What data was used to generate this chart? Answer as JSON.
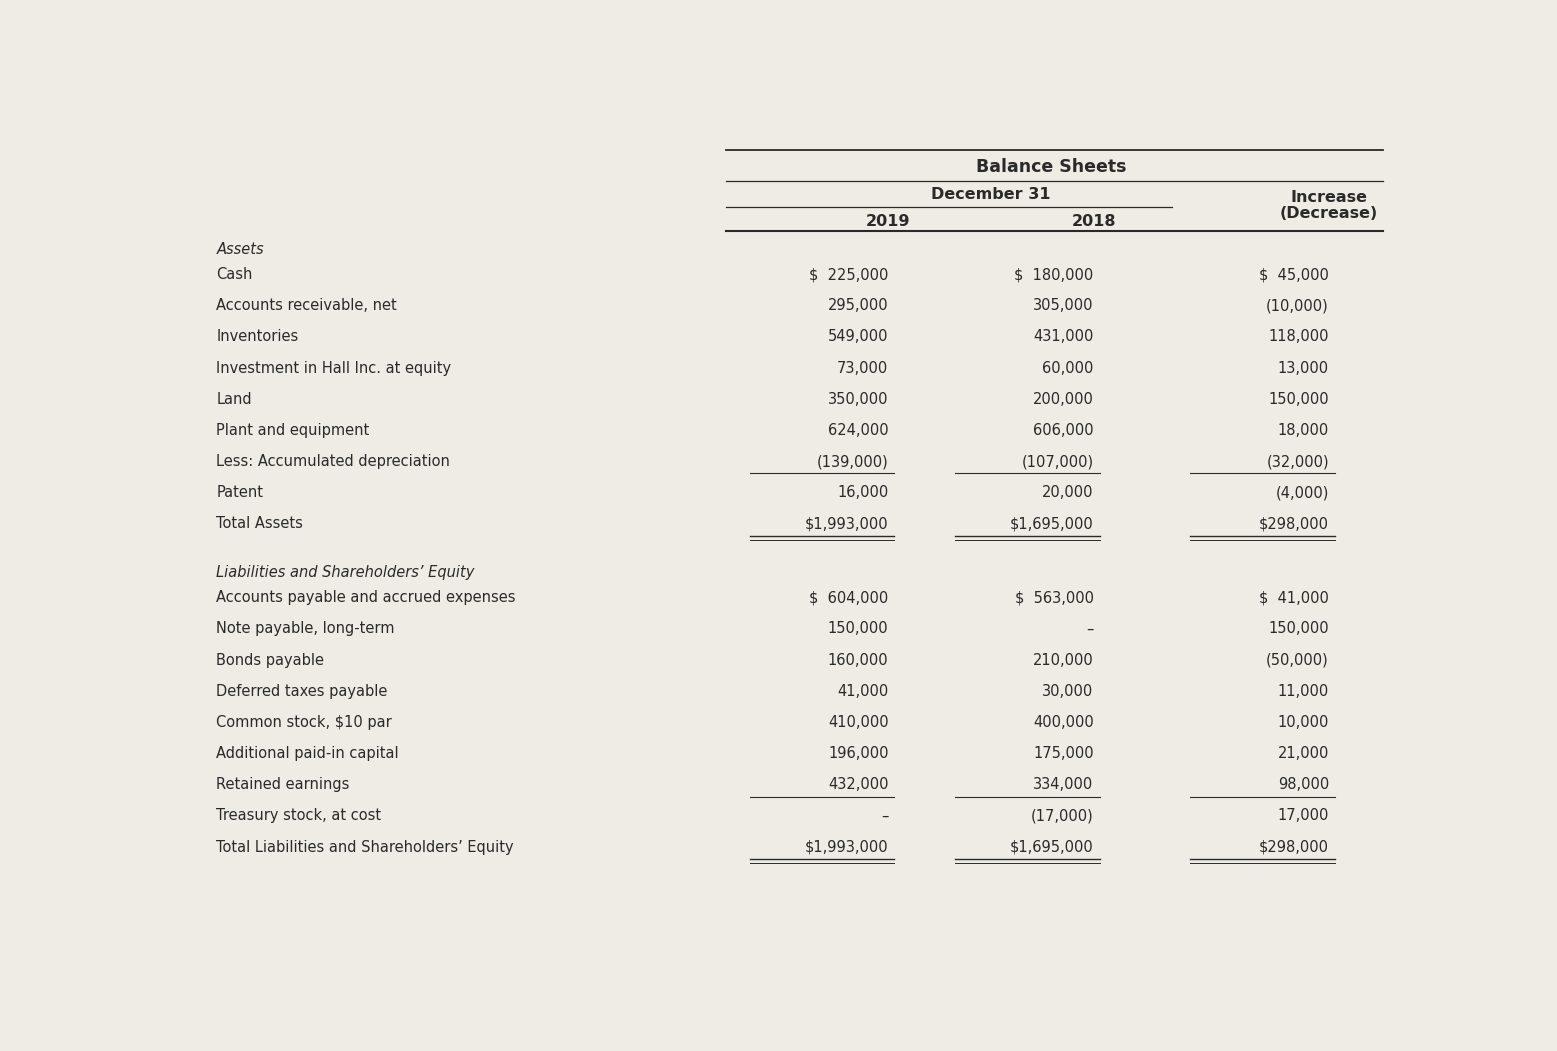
{
  "title": "Balance Sheets",
  "subtitle_dec31": "December 31",
  "background_color": "#eeece4",
  "text_color": "#2a2a2a",
  "assets_header": "Assets",
  "assets_rows": [
    {
      "label": "Cash",
      "v2019": "$  225,000",
      "v2018": "$  180,000",
      "vinc": "$  45,000"
    },
    {
      "label": "Accounts receivable, net",
      "v2019": "295,000",
      "v2018": "305,000",
      "vinc": "(10,000)"
    },
    {
      "label": "Inventories",
      "v2019": "549,000",
      "v2018": "431,000",
      "vinc": "118,000"
    },
    {
      "label": "Investment in Hall Inc. at equity",
      "v2019": "73,000",
      "v2018": "60,000",
      "vinc": "13,000"
    },
    {
      "label": "Land",
      "v2019": "350,000",
      "v2018": "200,000",
      "vinc": "150,000"
    },
    {
      "label": "Plant and equipment",
      "v2019": "624,000",
      "v2018": "606,000",
      "vinc": "18,000"
    },
    {
      "label": "Less: Accumulated depreciation",
      "v2019": "(139,000)",
      "v2018": "(107,000)",
      "vinc": "(32,000)"
    },
    {
      "label": "Patent",
      "v2019": "16,000",
      "v2018": "20,000",
      "vinc": "(4,000)",
      "underline": true
    },
    {
      "label": "Total Assets",
      "v2019": "$1,993,000",
      "v2018": "$1,695,000",
      "vinc": "$298,000",
      "total": true
    }
  ],
  "liabilities_header": "Liabilities and Shareholders’ Equity",
  "liabilities_rows": [
    {
      "label": "Accounts payable and accrued expenses",
      "v2019": "$  604,000",
      "v2018": "$  563,000",
      "vinc": "$  41,000"
    },
    {
      "label": "Note payable, long-term",
      "v2019": "150,000",
      "v2018": "–",
      "vinc": "150,000"
    },
    {
      "label": "Bonds payable",
      "v2019": "160,000",
      "v2018": "210,000",
      "vinc": "(50,000)"
    },
    {
      "label": "Deferred taxes payable",
      "v2019": "41,000",
      "v2018": "30,000",
      "vinc": "11,000"
    },
    {
      "label": "Common stock, $10 par",
      "v2019": "410,000",
      "v2018": "400,000",
      "vinc": "10,000"
    },
    {
      "label": "Additional paid-in capital",
      "v2019": "196,000",
      "v2018": "175,000",
      "vinc": "21,000"
    },
    {
      "label": "Retained earnings",
      "v2019": "432,000",
      "v2018": "334,000",
      "vinc": "98,000"
    },
    {
      "label": "Treasury stock, at cost",
      "v2019": "–",
      "v2018": "(17,000)",
      "vinc": "17,000",
      "underline": true
    },
    {
      "label": "Total Liabilities and Shareholders’ Equity",
      "v2019": "$1,993,000",
      "v2018": "$1,695,000",
      "vinc": "$298,000",
      "total": true
    }
  ]
}
